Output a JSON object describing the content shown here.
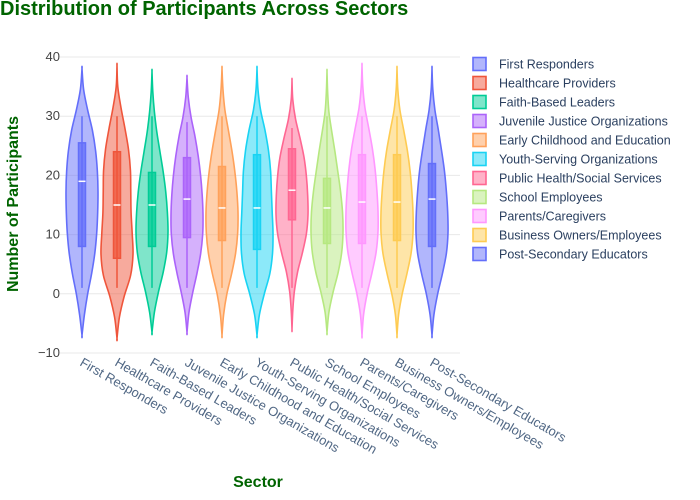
{
  "chart_data": {
    "type": "violin",
    "title": "Distribution of Participants Across Sectors",
    "xlabel": "Sector",
    "ylabel": "Number of Participants",
    "ylim": [
      -10,
      40
    ],
    "yticks": [
      40,
      30,
      20,
      10,
      0,
      -10
    ],
    "yticks_display": [
      "40",
      "30",
      "20",
      "10",
      "0",
      "−10"
    ],
    "grid": true,
    "legend_position": "right",
    "categories": [
      "First Responders",
      "Healthcare Providers",
      "Faith-Based Leaders",
      "Juvenile Justice Organizations",
      "Early Childhood and Education",
      "Youth-Serving Organizations",
      "Public Health/Social Services",
      "School Employees",
      "Parents/Caregivers",
      "Business Owners/Employees",
      "Post-Secondary Educators"
    ],
    "series": [
      {
        "name": "First Responders",
        "color": "#636efa",
        "min": -7,
        "max": 38,
        "q1": 8,
        "median": 19,
        "q3": 25.5,
        "whisker_low": 1,
        "whisker_high": 30,
        "density": [
          0.15,
          0.35,
          0.6,
          0.8,
          0.92,
          0.98,
          1.0,
          0.96,
          0.85,
          0.65,
          0.35,
          0.1
        ]
      },
      {
        "name": "Healthcare Providers",
        "color": "#ef553b",
        "min": -7.5,
        "max": 38.5,
        "q1": 6,
        "median": 15,
        "q3": 24,
        "whisker_low": 1,
        "whisker_high": 30,
        "density": [
          0.15,
          0.45,
          0.85,
          1.0,
          0.95,
          0.88,
          0.86,
          0.84,
          0.72,
          0.5,
          0.25,
          0.05
        ]
      },
      {
        "name": "Faith-Based Leaders",
        "color": "#00cc96",
        "min": -6.5,
        "max": 37.5,
        "q1": 8,
        "median": 15,
        "q3": 20.5,
        "whisker_low": 1,
        "whisker_high": 30,
        "density": [
          0.15,
          0.4,
          0.7,
          0.92,
          1.0,
          0.96,
          0.86,
          0.7,
          0.5,
          0.3,
          0.15,
          0.05
        ]
      },
      {
        "name": "Juvenile Justice Organizations",
        "color": "#ab63fa",
        "min": -6.5,
        "max": 36.5,
        "q1": 9.5,
        "median": 16,
        "q3": 23,
        "whisker_low": 1,
        "whisker_high": 29,
        "density": [
          0.12,
          0.35,
          0.62,
          0.85,
          0.98,
          1.0,
          0.95,
          0.85,
          0.7,
          0.5,
          0.25,
          0.08
        ]
      },
      {
        "name": "Early Childhood and Education",
        "color": "#ffa15a",
        "min": -7,
        "max": 38,
        "q1": 9,
        "median": 14.5,
        "q3": 21.5,
        "whisker_low": 1,
        "whisker_high": 30,
        "density": [
          0.1,
          0.3,
          0.6,
          0.85,
          0.98,
          1.0,
          0.93,
          0.8,
          0.62,
          0.4,
          0.18,
          0.06
        ]
      },
      {
        "name": "Youth-Serving Organizations",
        "color": "#19d3f3",
        "min": -7,
        "max": 38,
        "q1": 7.5,
        "median": 14.5,
        "q3": 23.5,
        "whisker_low": 1,
        "whisker_high": 30,
        "density": [
          0.15,
          0.45,
          0.8,
          0.97,
          1.0,
          0.95,
          0.9,
          0.85,
          0.72,
          0.5,
          0.22,
          0.06
        ]
      },
      {
        "name": "Public Health/Social Services",
        "color": "#ff6692",
        "min": -6,
        "max": 36,
        "q1": 12.5,
        "median": 17.5,
        "q3": 24.5,
        "whisker_low": 1,
        "whisker_high": 28,
        "density": [
          0.05,
          0.15,
          0.35,
          0.65,
          0.9,
          1.0,
          0.98,
          0.9,
          0.75,
          0.5,
          0.22,
          0.05
        ]
      },
      {
        "name": "School Employees",
        "color": "#b6e880",
        "min": -6.5,
        "max": 37.5,
        "q1": 8.5,
        "median": 14.5,
        "q3": 19.5,
        "whisker_low": 1,
        "whisker_high": 30,
        "density": [
          0.12,
          0.38,
          0.7,
          0.92,
          1.0,
          0.97,
          0.85,
          0.68,
          0.5,
          0.3,
          0.12,
          0.04
        ]
      },
      {
        "name": "Parents/Caregivers",
        "color": "#ff97ff",
        "min": -7,
        "max": 38.5,
        "q1": 8.5,
        "median": 15.5,
        "q3": 23.5,
        "whisker_low": 1,
        "whisker_high": 30,
        "density": [
          0.1,
          0.32,
          0.62,
          0.88,
          1.0,
          1.0,
          0.93,
          0.82,
          0.65,
          0.42,
          0.18,
          0.05
        ]
      },
      {
        "name": "Business Owners/Employees",
        "color": "#fecb52",
        "min": -7,
        "max": 38,
        "q1": 9,
        "median": 15.5,
        "q3": 23.5,
        "whisker_low": 1,
        "whisker_high": 30,
        "density": [
          0.1,
          0.32,
          0.62,
          0.88,
          1.0,
          1.0,
          0.93,
          0.82,
          0.65,
          0.42,
          0.18,
          0.05
        ]
      },
      {
        "name": "Post-Secondary Educators",
        "color": "#636efa",
        "min": -7,
        "max": 38,
        "q1": 8,
        "median": 16,
        "q3": 22,
        "whisker_low": 1,
        "whisker_high": 30,
        "density": [
          0.12,
          0.35,
          0.65,
          0.9,
          1.0,
          0.98,
          0.9,
          0.78,
          0.6,
          0.4,
          0.18,
          0.05
        ]
      }
    ]
  }
}
